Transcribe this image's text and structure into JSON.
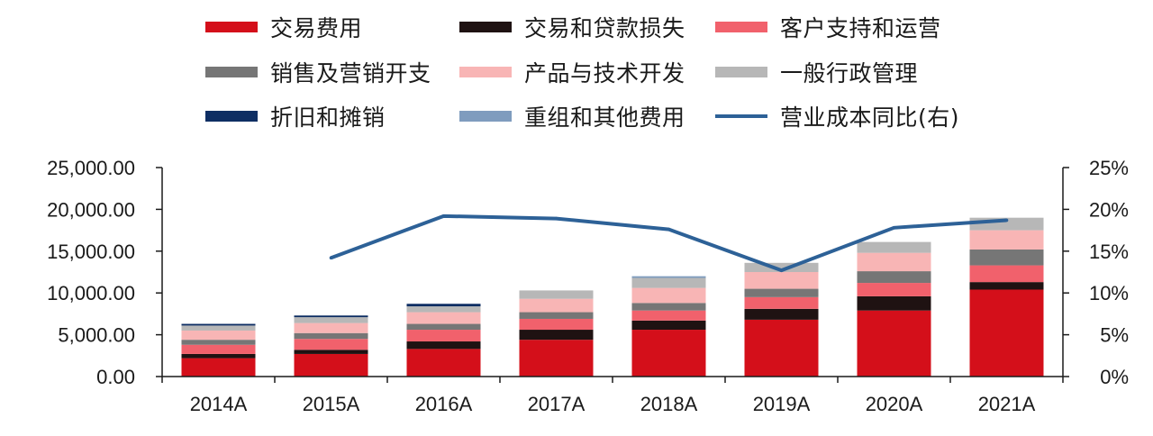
{
  "chart_data": {
    "type": "bar",
    "stacked": true,
    "categories": [
      "2014A",
      "2015A",
      "2016A",
      "2017A",
      "2018A",
      "2019A",
      "2020A",
      "2021A"
    ],
    "series": [
      {
        "name": "交易费用",
        "color": "#d40f1a",
        "values": [
          2200,
          2700,
          3300,
          4400,
          5600,
          6800,
          7900,
          10400
        ]
      },
      {
        "name": "交易和贷款损失",
        "color": "#1f1212",
        "values": [
          500,
          500,
          900,
          1200,
          1100,
          1300,
          1700,
          900
        ]
      },
      {
        "name": "客户支持和运营",
        "color": "#f1616c",
        "values": [
          1100,
          1300,
          1400,
          1300,
          1200,
          1400,
          1600,
          2000
        ]
      },
      {
        "name": "销售及营销开支",
        "color": "#767676",
        "values": [
          600,
          700,
          700,
          800,
          900,
          1000,
          1400,
          1900
        ]
      },
      {
        "name": "产品与技术开发",
        "color": "#f8b5b5",
        "values": [
          1100,
          1200,
          1400,
          1600,
          1800,
          2000,
          2200,
          2300
        ]
      },
      {
        "name": "一般行政管理",
        "color": "#b7b7b7",
        "values": [
          600,
          700,
          700,
          1000,
          1200,
          1100,
          1300,
          1500
        ]
      },
      {
        "name": "折旧和摊销",
        "color": "#0e2e63",
        "values": [
          200,
          200,
          300,
          0,
          0,
          0,
          0,
          0
        ]
      },
      {
        "name": "重组和其他费用",
        "color": "#7f9cbe",
        "values": [
          0,
          0,
          0,
          0,
          200,
          0,
          0,
          0
        ]
      }
    ],
    "line_series": {
      "name": "营业成本同比(右)",
      "color": "#2d6197",
      "axis": "right",
      "values": [
        null,
        14.2,
        19.2,
        18.9,
        17.6,
        12.7,
        17.8,
        18.7
      ]
    },
    "ylim": [
      0,
      25000
    ],
    "y2lim": [
      0,
      25
    ],
    "yticks": [
      "25,000.00",
      "20,000.00",
      "15,000.00",
      "10,000.00",
      "5,000.00",
      "0.00"
    ],
    "y2ticks": [
      "25%",
      "20%",
      "15%",
      "10%",
      "5%",
      "0%"
    ],
    "grid": false,
    "legend_position": "top"
  }
}
